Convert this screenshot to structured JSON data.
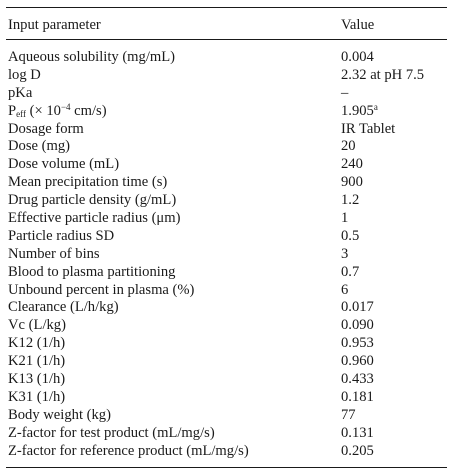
{
  "table": {
    "header": {
      "param": "Input parameter",
      "value": "Value"
    },
    "rows": [
      {
        "param": "Aqueous solubility (mg/mL)",
        "value": "0.004"
      },
      {
        "param": "log D",
        "value": "2.32 at pH 7.5"
      },
      {
        "param": "pKa",
        "value": "–"
      },
      {
        "param_pre": "P",
        "param_sub": "eff",
        "param_mid": " (× 10",
        "param_sup": "−4",
        "param_post": " cm/s)",
        "value": "1.905",
        "value_sup": "a"
      },
      {
        "param": "Dosage form",
        "value": "IR Tablet"
      },
      {
        "param": "Dose (mg)",
        "value": "20"
      },
      {
        "param": "Dose volume (mL)",
        "value": "240"
      },
      {
        "param": "Mean precipitation time (s)",
        "value": "900"
      },
      {
        "param": "Drug particle density (g/mL)",
        "value": "1.2"
      },
      {
        "param": "Effective particle radius (μm)",
        "value": "1"
      },
      {
        "param": "Particle radius SD",
        "value": "0.5"
      },
      {
        "param": "Number of bins",
        "value": "3"
      },
      {
        "param": "Blood to plasma partitioning",
        "value": "0.7"
      },
      {
        "param": "Unbound percent in plasma (%)",
        "value": "6"
      },
      {
        "param": "Clearance (L/h/kg)",
        "value": "0.017"
      },
      {
        "param": "Vc (L/kg)",
        "value": "0.090"
      },
      {
        "param": "K12 (1/h)",
        "value": "0.953"
      },
      {
        "param": "K21 (1/h)",
        "value": "0.960"
      },
      {
        "param": "K13 (1/h)",
        "value": "0.433"
      },
      {
        "param": "K31 (1/h)",
        "value": "0.181"
      },
      {
        "param": "Body weight (kg)",
        "value": "77"
      },
      {
        "param": "Z-factor for test product (mL/mg/s)",
        "value": "0.131"
      },
      {
        "param": "Z-factor for reference product (mL/mg/s)",
        "value": "0.205"
      }
    ]
  }
}
